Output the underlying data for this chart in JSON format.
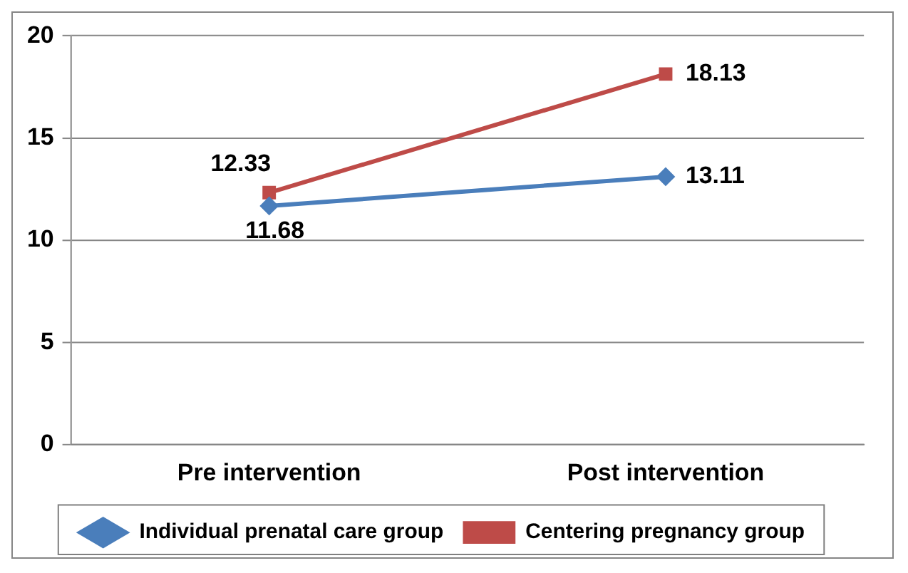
{
  "chart_data": {
    "type": "line",
    "categories": [
      "Pre intervention",
      "Post intervention"
    ],
    "series": [
      {
        "name": "Individual prenatal care group",
        "color": "#4a7ebb",
        "marker": "diamond",
        "values": [
          11.68,
          13.11
        ]
      },
      {
        "name": "Centering pregnancy group",
        "color": "#be4b48",
        "marker": "square",
        "values": [
          12.33,
          18.13
        ]
      }
    ],
    "ylim": [
      0,
      20
    ],
    "yticks": [
      0,
      5,
      10,
      15,
      20
    ],
    "grid": "y",
    "legend": "bottom",
    "data_labels": true
  }
}
